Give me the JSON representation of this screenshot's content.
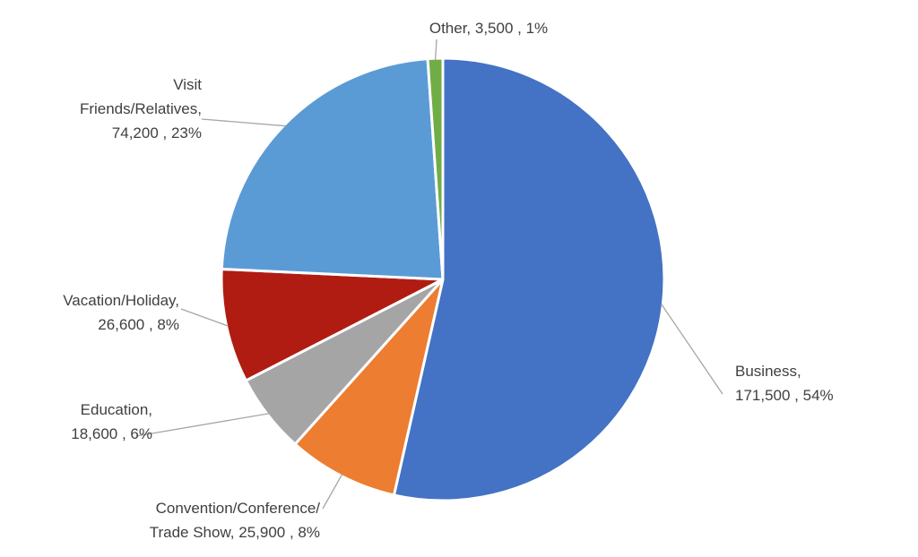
{
  "chart_data": {
    "type": "pie",
    "title": "",
    "slices": [
      {
        "name": "Business",
        "label_lines": [
          "Business,",
          "171,500 , 54%"
        ],
        "value": 171500,
        "percent": 54,
        "color": "#4472c4"
      },
      {
        "name": "Convention/Conference/ Trade Show",
        "label_lines": [
          "Convention/Conference/",
          "Trade Show, 25,900 , 8%"
        ],
        "value": 25900,
        "percent": 8,
        "color": "#ed7d31"
      },
      {
        "name": "Education",
        "label_lines": [
          "Education,",
          "18,600 , 6%"
        ],
        "value": 18600,
        "percent": 6,
        "color": "#a5a5a5"
      },
      {
        "name": "Vacation/Holiday",
        "label_lines": [
          "Vacation/Holiday,",
          "26,600 , 8%"
        ],
        "value": 26600,
        "percent": 8,
        "color": "#b01c12"
      },
      {
        "name": "Visit Friends/Relatives",
        "label_lines": [
          "Visit",
          "Friends/Relatives,",
          "74,200 , 23%"
        ],
        "value": 74200,
        "percent": 23,
        "color": "#5b9bd5"
      },
      {
        "name": "Other",
        "label_lines": [
          "Other, 3,500 , 1%"
        ],
        "value": 3500,
        "percent": 1,
        "color": "#70ad47"
      }
    ],
    "start_angle": "12 o'clock",
    "direction": "clockwise",
    "legend": "none",
    "data_labels": "outside with leader lines"
  }
}
